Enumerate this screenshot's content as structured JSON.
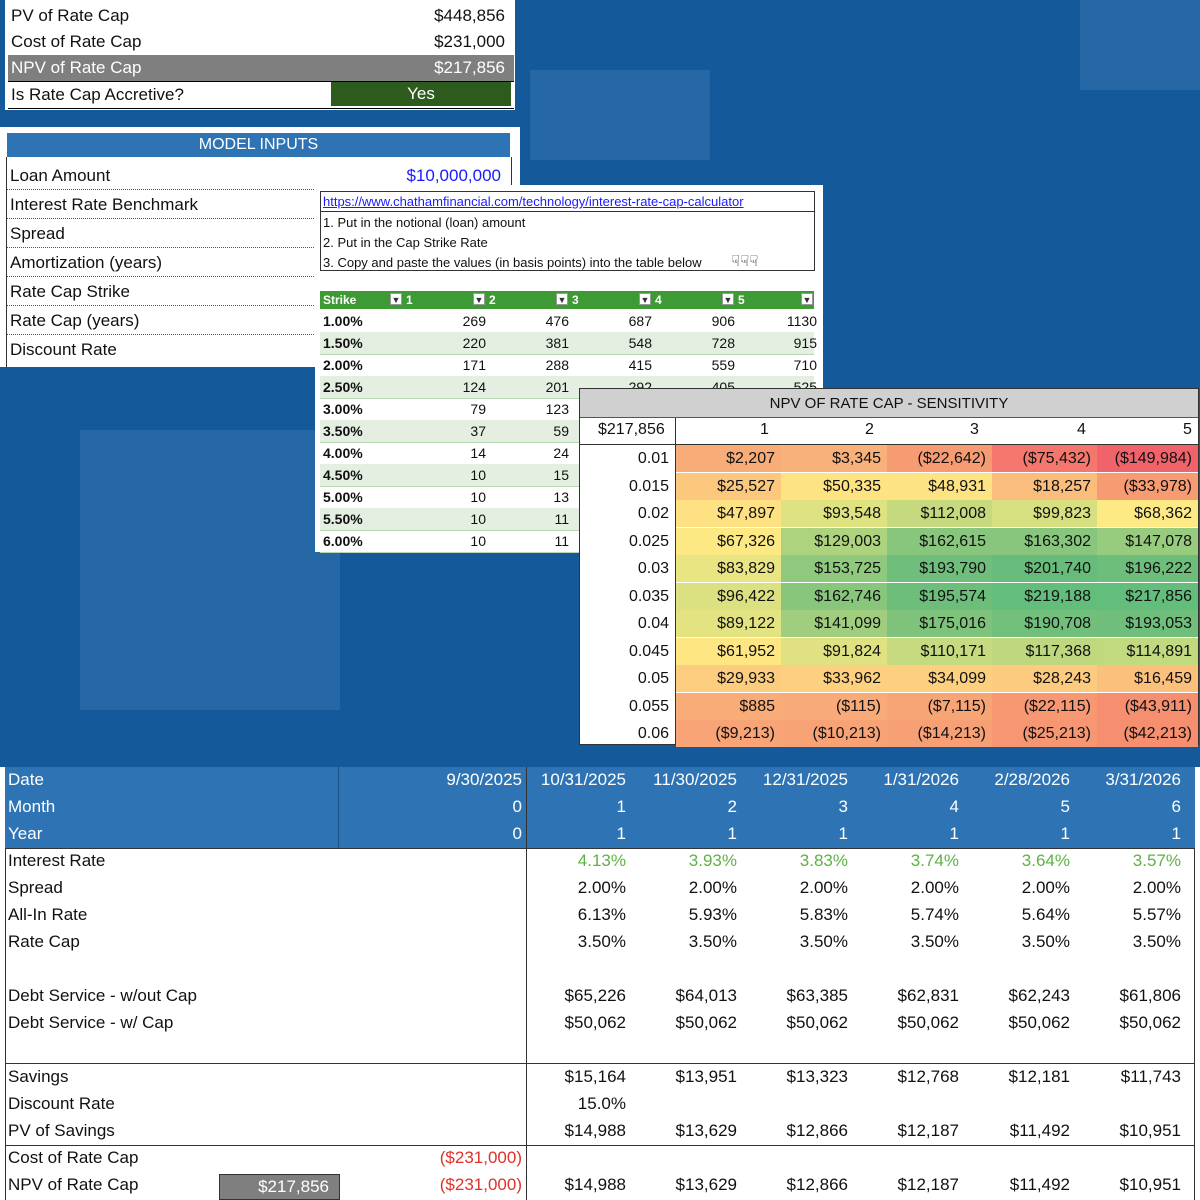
{
  "summary": {
    "rows": [
      {
        "label": "PV of Rate Cap",
        "value": "$448,856"
      },
      {
        "label": "Cost of Rate Cap",
        "value": "$231,000"
      },
      {
        "label": "NPV of Rate Cap",
        "value": "$217,856"
      },
      {
        "label": "Is Rate Cap Accretive?",
        "value": "Yes"
      }
    ]
  },
  "inputs": {
    "title": "MODEL INPUTS",
    "rows": [
      {
        "label": "Loan Amount",
        "value": "$10,000,000"
      },
      {
        "label": "Interest Rate Benchmark",
        "value": ""
      },
      {
        "label": "Spread",
        "value": ""
      },
      {
        "label": "Amortization (years)",
        "value": ""
      },
      {
        "label": "Rate Cap Strike",
        "value": ""
      },
      {
        "label": "Rate Cap (years)",
        "value": ""
      },
      {
        "label": "Discount Rate",
        "value": ""
      }
    ]
  },
  "chatham": {
    "url": "https://www.chathamfinancial.com/technology/interest-rate-cap-calculator",
    "steps": [
      "1. Put in the notional (loan) amount",
      "2. Put in the Cap Strike Rate",
      "3. Copy and paste the values (in basis points) into the table below"
    ],
    "pointers": "☟☟☟",
    "headers": [
      "Strike",
      "1",
      "2",
      "3",
      "4",
      "5"
    ],
    "rows": [
      [
        "1.00%",
        "269",
        "476",
        "687",
        "906",
        "1130"
      ],
      [
        "1.50%",
        "220",
        "381",
        "548",
        "728",
        "915"
      ],
      [
        "2.00%",
        "171",
        "288",
        "415",
        "559",
        "710"
      ],
      [
        "2.50%",
        "124",
        "201",
        "292",
        "405",
        "525"
      ],
      [
        "3.00%",
        "79",
        "123",
        "",
        "",
        ""
      ],
      [
        "3.50%",
        "37",
        "59",
        "",
        "",
        ""
      ],
      [
        "4.00%",
        "14",
        "24",
        "",
        "",
        ""
      ],
      [
        "4.50%",
        "10",
        "15",
        "",
        "",
        ""
      ],
      [
        "5.00%",
        "10",
        "13",
        "",
        "",
        ""
      ],
      [
        "5.50%",
        "10",
        "11",
        "",
        "",
        ""
      ],
      [
        "6.00%",
        "10",
        "11",
        "",
        "",
        ""
      ]
    ]
  },
  "sensitivity": {
    "title": "NPV OF RATE CAP - SENSITIVITY",
    "corner": "$217,856",
    "cols": [
      "1",
      "2",
      "3",
      "4",
      "5"
    ],
    "rows": [
      {
        "rate": "0.01",
        "vals": [
          "$2,207",
          "$3,345",
          "($22,642)",
          "($75,432)",
          "($149,984)"
        ],
        "colors": [
          "#f8ad78",
          "#f8b17a",
          "#f79c72",
          "#f5766c",
          "#f0636b"
        ]
      },
      {
        "rate": "0.015",
        "vals": [
          "$25,527",
          "$50,335",
          "$48,931",
          "$18,257",
          "($33,978)"
        ],
        "colors": [
          "#fcc87e",
          "#fee382",
          "#fee382",
          "#fbbd7c",
          "#f79b72"
        ]
      },
      {
        "rate": "0.02",
        "vals": [
          "$47,897",
          "$93,548",
          "$112,008",
          "$99,823",
          "$68,362"
        ],
        "colors": [
          "#fee182",
          "#dee281",
          "#c5da7f",
          "#d7e081",
          "#fdea84"
        ]
      },
      {
        "rate": "0.025",
        "vals": [
          "$67,326",
          "$129,003",
          "$162,615",
          "$163,302",
          "$147,078"
        ],
        "colors": [
          "#fde984",
          "#add37f",
          "#87c67c",
          "#87c67c",
          "#97cb7d"
        ]
      },
      {
        "rate": "0.03",
        "vals": [
          "$83,829",
          "$153,725",
          "$193,790",
          "$201,740",
          "$196,222"
        ],
        "colors": [
          "#eae583",
          "#8fc97d",
          "#6fbe7b",
          "#68bc7b",
          "#6ebe7b"
        ]
      },
      {
        "rate": "0.035",
        "vals": [
          "$96,422",
          "$162,746",
          "$195,574",
          "$219,188",
          "$217,856"
        ],
        "colors": [
          "#dbe181",
          "#88c67c",
          "#6dbd7b",
          "#63be7b",
          "#63be7b"
        ]
      },
      {
        "rate": "0.04",
        "vals": [
          "$89,122",
          "$141,099",
          "$175,016",
          "$190,708",
          "$193,053"
        ],
        "colors": [
          "#e4e382",
          "#a0ce7e",
          "#7fc27c",
          "#71bf7b",
          "#6fbe7b"
        ]
      },
      {
        "rate": "0.045",
        "vals": [
          "$61,952",
          "$91,824",
          "$110,171",
          "$117,368",
          "$114,891"
        ],
        "colors": [
          "#fee683",
          "#e0e282",
          "#c6da80",
          "#bfd87f",
          "#c1d97f"
        ]
      },
      {
        "rate": "0.05",
        "vals": [
          "$29,933",
          "$33,962",
          "$34,099",
          "$28,243",
          "$16,459"
        ],
        "colors": [
          "#fccc7f",
          "#fdd07f",
          "#fdd07f",
          "#fccb7f",
          "#fbc07c"
        ]
      },
      {
        "rate": "0.055",
        "vals": [
          "$885",
          "($115)",
          "($7,115)",
          "($22,115)",
          "($43,911)"
        ],
        "colors": [
          "#f8ac78",
          "#f8ab78",
          "#f8a576",
          "#f79873",
          "#f58f70"
        ]
      },
      {
        "rate": "0.06",
        "vals": [
          "($9,213)",
          "($10,213)",
          "($14,213)",
          "($25,213)",
          "($42,213)"
        ],
        "colors": [
          "#f8a476",
          "#f8a376",
          "#f7a075",
          "#f79672",
          "#f58f70"
        ]
      }
    ]
  },
  "schedule": {
    "header_labels": [
      "Date",
      "Month",
      "Year"
    ],
    "first_col": [
      "9/30/2025",
      "0",
      "0"
    ],
    "dates": [
      "10/31/2025",
      "11/30/2025",
      "12/31/2025",
      "1/31/2026",
      "2/28/2026",
      "3/31/2026"
    ],
    "months": [
      "1",
      "2",
      "3",
      "4",
      "5",
      "6"
    ],
    "years": [
      "1",
      "1",
      "1",
      "1",
      "1",
      "1"
    ],
    "rows": [
      {
        "label": "Interest Rate",
        "vals": [
          "4.13%",
          "3.93%",
          "3.83%",
          "3.74%",
          "3.64%",
          "3.57%"
        ],
        "style": "g"
      },
      {
        "label": "Spread",
        "vals": [
          "2.00%",
          "2.00%",
          "2.00%",
          "2.00%",
          "2.00%",
          "2.00%"
        ],
        "style": ""
      },
      {
        "label": "All-In Rate",
        "vals": [
          "6.13%",
          "5.93%",
          "5.83%",
          "5.74%",
          "5.64%",
          "5.57%"
        ],
        "style": ""
      },
      {
        "label": "Rate Cap",
        "vals": [
          "3.50%",
          "3.50%",
          "3.50%",
          "3.50%",
          "3.50%",
          "3.50%"
        ],
        "style": ""
      },
      {
        "label": "Debt Service - w/out Cap",
        "vals": [
          "$65,226",
          "$64,013",
          "$63,385",
          "$62,831",
          "$62,243",
          "$61,806"
        ],
        "style": ""
      },
      {
        "label": "Debt Service - w/ Cap",
        "vals": [
          "$50,062",
          "$50,062",
          "$50,062",
          "$50,062",
          "$50,062",
          "$50,062"
        ],
        "style": ""
      },
      {
        "label": "Savings",
        "vals": [
          "$15,164",
          "$13,951",
          "$13,323",
          "$12,768",
          "$12,181",
          "$11,743"
        ],
        "style": ""
      },
      {
        "label": "Discount Rate",
        "vals": [
          "15.0%",
          "",
          "",
          "",
          "",
          ""
        ],
        "style": ""
      },
      {
        "label": "PV of Savings",
        "vals": [
          "$14,988",
          "$13,629",
          "$12,866",
          "$12,187",
          "$11,492",
          "$10,951"
        ],
        "style": ""
      },
      {
        "label": "Cost of Rate Cap",
        "vals": [
          "",
          "",
          "",
          "",
          "",
          ""
        ],
        "style": "",
        "first": "($231,000)"
      },
      {
        "label": "NPV of Rate Cap",
        "vals": [
          "$14,988",
          "$13,629",
          "$12,866",
          "$12,187",
          "$11,492",
          "$10,951"
        ],
        "style": "",
        "first": "($231,000)",
        "box": "$217,856"
      }
    ]
  }
}
